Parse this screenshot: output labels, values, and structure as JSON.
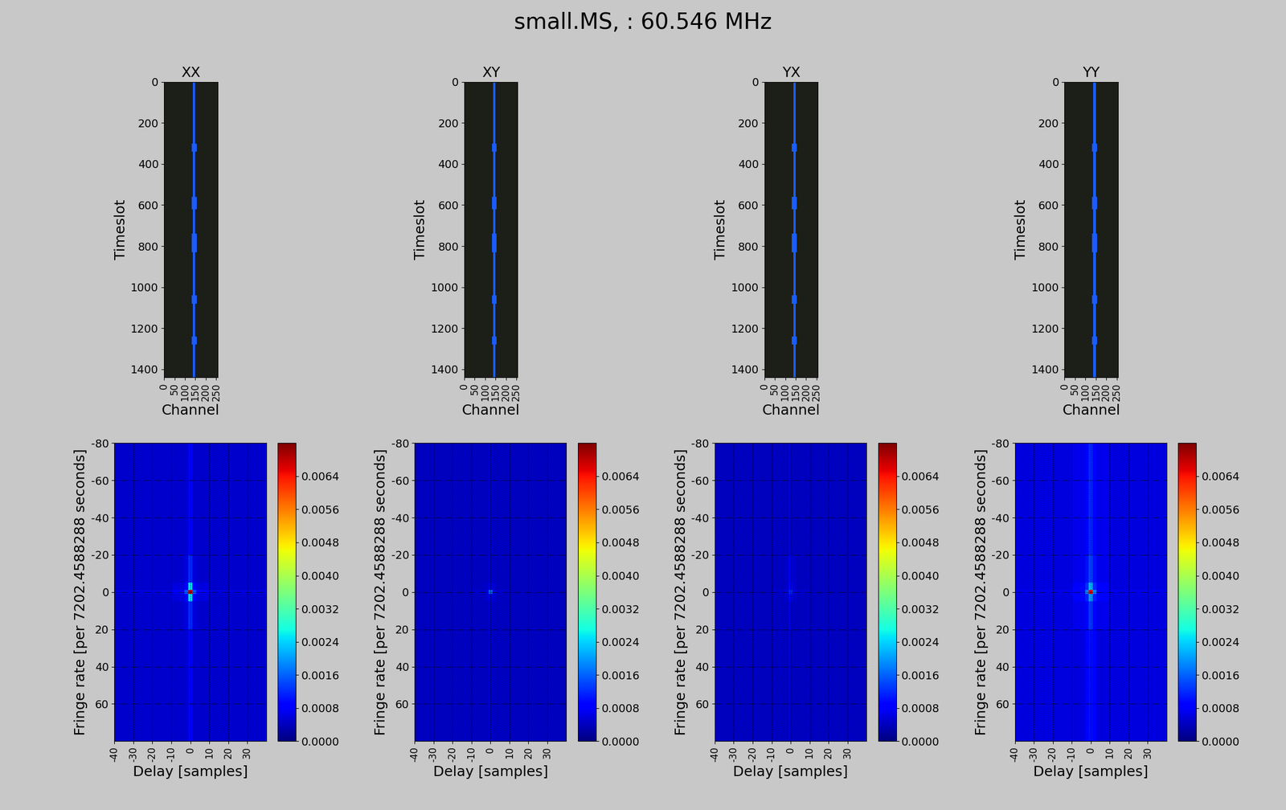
{
  "title": "small.MS, : 60.546 MHz",
  "chart_data": [
    {
      "type": "heatmap",
      "title": "XX",
      "x_label": "Channel",
      "y_label": "Timeslot",
      "x_edges": [
        0,
        132,
        138,
        150,
        156,
        256
      ],
      "y_edges": [
        0,
        300,
        340,
        560,
        620,
        740,
        830,
        1040,
        1080,
        1240,
        1280,
        1440
      ],
      "cells": [
        [
          0.15,
          0.15,
          1,
          0.15,
          0.15
        ],
        [
          0.15,
          1,
          1,
          1,
          0.15
        ],
        [
          0.15,
          0.15,
          1,
          0.15,
          0.15
        ],
        [
          0.15,
          1,
          1,
          1,
          0.15
        ],
        [
          0.15,
          0.15,
          1,
          0.15,
          0.15
        ],
        [
          0.15,
          1,
          1,
          1,
          0.15
        ],
        [
          0.15,
          0.15,
          1,
          0.15,
          0.15
        ],
        [
          0.15,
          1,
          1,
          1,
          0.15
        ],
        [
          0.15,
          0.15,
          1,
          0.15,
          0.15
        ],
        [
          0.15,
          1,
          1,
          1,
          0.15
        ],
        [
          0.15,
          0.15,
          1,
          0.15,
          0.15
        ]
      ],
      "xlim": [
        0,
        256
      ],
      "ylim": [
        1440,
        0
      ],
      "xticks": [
        0,
        50,
        100,
        150,
        200,
        250
      ],
      "yticks": [
        0,
        200,
        400,
        600,
        800,
        1000,
        1200,
        1400
      ]
    },
    {
      "type": "heatmap",
      "title": "XY",
      "x_label": "Channel",
      "y_label": "Timeslot",
      "x_edges": [
        0,
        132,
        138,
        150,
        156,
        256
      ],
      "y_edges": [
        0,
        300,
        340,
        560,
        620,
        740,
        830,
        1040,
        1080,
        1240,
        1280,
        1440
      ],
      "cells": [
        [
          0.15,
          0.15,
          1,
          0.15,
          0.15
        ],
        [
          0.15,
          1,
          1,
          1,
          0.15
        ],
        [
          0.15,
          0.15,
          1,
          0.15,
          0.15
        ],
        [
          0.15,
          1,
          1,
          1,
          0.15
        ],
        [
          0.15,
          0.15,
          1,
          0.15,
          0.15
        ],
        [
          0.15,
          1,
          1,
          1,
          0.15
        ],
        [
          0.15,
          0.15,
          1,
          0.15,
          0.15
        ],
        [
          0.15,
          1,
          1,
          1,
          0.15
        ],
        [
          0.15,
          0.15,
          1,
          0.15,
          0.15
        ],
        [
          0.15,
          1,
          1,
          1,
          0.15
        ],
        [
          0.15,
          0.15,
          1,
          0.15,
          0.15
        ]
      ],
      "xlim": [
        0,
        256
      ],
      "ylim": [
        1440,
        0
      ],
      "xticks": [
        0,
        50,
        100,
        150,
        200,
        250
      ],
      "yticks": [
        0,
        200,
        400,
        600,
        800,
        1000,
        1200,
        1400
      ]
    },
    {
      "type": "heatmap",
      "title": "YX",
      "x_label": "Channel",
      "y_label": "Timeslot",
      "x_edges": [
        0,
        132,
        138,
        150,
        156,
        256
      ],
      "y_edges": [
        0,
        300,
        340,
        560,
        620,
        740,
        830,
        1040,
        1080,
        1240,
        1280,
        1440
      ],
      "cells": [
        [
          0.15,
          0.15,
          1,
          0.15,
          0.15
        ],
        [
          0.15,
          1,
          1,
          1,
          0.15
        ],
        [
          0.15,
          0.15,
          1,
          0.15,
          0.15
        ],
        [
          0.15,
          1,
          1,
          1,
          0.15
        ],
        [
          0.15,
          0.15,
          1,
          0.15,
          0.15
        ],
        [
          0.15,
          1,
          1,
          1,
          0.15
        ],
        [
          0.15,
          0.15,
          1,
          0.15,
          0.15
        ],
        [
          0.15,
          1,
          1,
          1,
          0.15
        ],
        [
          0.15,
          0.15,
          1,
          0.15,
          0.15
        ],
        [
          0.15,
          1,
          1,
          1,
          0.15
        ],
        [
          0.15,
          0.15,
          1,
          0.15,
          0.15
        ]
      ],
      "xlim": [
        0,
        256
      ],
      "ylim": [
        1440,
        0
      ],
      "xticks": [
        0,
        50,
        100,
        150,
        200,
        250
      ],
      "yticks": [
        0,
        200,
        400,
        600,
        800,
        1000,
        1200,
        1400
      ]
    },
    {
      "type": "heatmap",
      "title": "YY",
      "x_label": "Channel",
      "y_label": "Timeslot",
      "x_edges": [
        0,
        132,
        138,
        150,
        156,
        256
      ],
      "y_edges": [
        0,
        300,
        340,
        560,
        620,
        740,
        830,
        1040,
        1080,
        1240,
        1280,
        1440
      ],
      "cells": [
        [
          0.15,
          0.15,
          1,
          0.15,
          0.15
        ],
        [
          0.15,
          1,
          1,
          1,
          0.15
        ],
        [
          0.15,
          0.15,
          1,
          0.15,
          0.15
        ],
        [
          0.15,
          1,
          1,
          1,
          0.15
        ],
        [
          0.15,
          0.15,
          1,
          0.15,
          0.15
        ],
        [
          0.15,
          1,
          1,
          1,
          0.15
        ],
        [
          0.15,
          0.15,
          1,
          0.15,
          0.15
        ],
        [
          0.15,
          1,
          1,
          1,
          0.15
        ],
        [
          0.15,
          0.15,
          1,
          0.15,
          0.15
        ],
        [
          0.15,
          1,
          1,
          1,
          0.15
        ],
        [
          0.15,
          0.15,
          1,
          0.15,
          0.15
        ]
      ],
      "xlim": [
        0,
        256
      ],
      "ylim": [
        1440,
        0
      ],
      "xticks": [
        0,
        50,
        100,
        150,
        200,
        250
      ],
      "yticks": [
        0,
        200,
        400,
        600,
        800,
        1000,
        1200,
        1400
      ]
    },
    {
      "type": "heatmap",
      "x_label": "Delay [samples]",
      "y_label": "Fringe rate [per 7202.4588288 seconds]",
      "x_edges": [
        -40,
        -10,
        -3,
        -1,
        1,
        3,
        10,
        40
      ],
      "y_edges": [
        -80,
        -20,
        -5,
        -1,
        1,
        5,
        20,
        80
      ],
      "cells": [
        [
          0.0005,
          0.0005,
          0.0005,
          0.0008,
          0.0005,
          0.0005,
          0.0005
        ],
        [
          0.0005,
          0.0005,
          0.0006,
          0.0012,
          0.0006,
          0.0005,
          0.0005
        ],
        [
          0.0005,
          0.0006,
          0.0008,
          0.0025,
          0.0008,
          0.0006,
          0.0005
        ],
        [
          0.0006,
          0.0008,
          0.0015,
          0.0068,
          0.0015,
          0.0008,
          0.0006
        ],
        [
          0.0005,
          0.0006,
          0.0008,
          0.0025,
          0.0008,
          0.0006,
          0.0005
        ],
        [
          0.0005,
          0.0005,
          0.0006,
          0.0012,
          0.0006,
          0.0005,
          0.0005
        ],
        [
          0.0005,
          0.0005,
          0.0005,
          0.0008,
          0.0005,
          0.0005,
          0.0005
        ]
      ],
      "xlim": [
        -40,
        40
      ],
      "ylim": [
        80,
        -80
      ],
      "xticks": [
        -40,
        -30,
        -20,
        -10,
        0,
        10,
        20,
        30
      ],
      "yticks": [
        -80,
        -60,
        -40,
        -20,
        0,
        20,
        40,
        60
      ],
      "grid": true,
      "colorbar_range": [
        0,
        0.0072
      ],
      "colorbar_ticks": [
        {
          "value": 0,
          "label": "0.0000"
        },
        0.0008,
        0.0016,
        0.0024,
        0.0032,
        {
          "value": 0.004,
          "label": "0.0040"
        },
        0.0048,
        0.0056,
        0.0064
      ]
    },
    {
      "type": "heatmap",
      "x_label": "Delay [samples]",
      "y_label": "Fringe rate [per 7202.4588288 seconds]",
      "x_edges": [
        -40,
        -10,
        -3,
        -1,
        1,
        3,
        10,
        40
      ],
      "y_edges": [
        -80,
        -20,
        -5,
        -1,
        1,
        5,
        20,
        80
      ],
      "cells": [
        [
          0.0004,
          0.0004,
          0.0004,
          0.0005,
          0.0004,
          0.0004,
          0.0004
        ],
        [
          0.0004,
          0.0004,
          0.0004,
          0.0005,
          0.0004,
          0.0004,
          0.0004
        ],
        [
          0.0004,
          0.0004,
          0.0005,
          0.0006,
          0.0005,
          0.0004,
          0.0004
        ],
        [
          0.0004,
          0.0005,
          0.0006,
          0.0016,
          0.0006,
          0.0005,
          0.0004
        ],
        [
          0.0004,
          0.0004,
          0.0005,
          0.0006,
          0.0005,
          0.0004,
          0.0004
        ],
        [
          0.0004,
          0.0004,
          0.0004,
          0.0005,
          0.0004,
          0.0004,
          0.0004
        ],
        [
          0.0004,
          0.0004,
          0.0004,
          0.0005,
          0.0004,
          0.0004,
          0.0004
        ]
      ],
      "xlim": [
        -40,
        40
      ],
      "ylim": [
        80,
        -80
      ],
      "xticks": [
        -40,
        -30,
        -20,
        -10,
        0,
        10,
        20,
        30
      ],
      "yticks": [
        -80,
        -60,
        -40,
        -20,
        0,
        20,
        40,
        60
      ],
      "grid": true,
      "colorbar_range": [
        0,
        0.0072
      ],
      "colorbar_ticks": [
        {
          "value": 0,
          "label": "0.0000"
        },
        0.0008,
        0.0016,
        0.0024,
        0.0032,
        {
          "value": 0.004,
          "label": "0.0040"
        },
        0.0048,
        0.0056,
        0.0064
      ]
    },
    {
      "type": "heatmap",
      "x_label": "Delay [samples]",
      "y_label": "Fringe rate [per 7202.4588288 seconds]",
      "x_edges": [
        -40,
        -10,
        -3,
        -1,
        1,
        3,
        10,
        40
      ],
      "y_edges": [
        -80,
        -20,
        -5,
        -1,
        1,
        5,
        20,
        80
      ],
      "cells": [
        [
          0.0004,
          0.0004,
          0.0004,
          0.0005,
          0.0004,
          0.0004,
          0.0004
        ],
        [
          0.0004,
          0.0004,
          0.0005,
          0.0007,
          0.0005,
          0.0004,
          0.0004
        ],
        [
          0.0004,
          0.0004,
          0.0005,
          0.0009,
          0.0005,
          0.0004,
          0.0004
        ],
        [
          0.0004,
          0.0005,
          0.0006,
          0.0012,
          0.0006,
          0.0005,
          0.0004
        ],
        [
          0.0004,
          0.0004,
          0.0005,
          0.0008,
          0.0005,
          0.0004,
          0.0004
        ],
        [
          0.0004,
          0.0004,
          0.0004,
          0.0006,
          0.0004,
          0.0004,
          0.0004
        ],
        [
          0.0004,
          0.0004,
          0.0004,
          0.0005,
          0.0004,
          0.0004,
          0.0004
        ]
      ],
      "xlim": [
        -40,
        40
      ],
      "ylim": [
        80,
        -80
      ],
      "xticks": [
        -40,
        -30,
        -20,
        -10,
        0,
        10,
        20,
        30
      ],
      "yticks": [
        -80,
        -60,
        -40,
        -20,
        0,
        20,
        40,
        60
      ],
      "grid": true,
      "colorbar_range": [
        0,
        0.0072
      ],
      "colorbar_ticks": [
        {
          "value": 0,
          "label": "0.0000"
        },
        0.0008,
        0.0016,
        0.0024,
        0.0032,
        {
          "value": 0.004,
          "label": "0.0040"
        },
        0.0048,
        0.0056,
        0.0064
      ]
    },
    {
      "type": "heatmap",
      "x_label": "Delay [samples]",
      "y_label": "Fringe rate [per 7202.4588288 seconds]",
      "x_edges": [
        -40,
        -10,
        -3,
        -1,
        1,
        3,
        10,
        40
      ],
      "y_edges": [
        -80,
        -20,
        -5,
        -1,
        1,
        5,
        20,
        80
      ],
      "cells": [
        [
          0.0006,
          0.0007,
          0.0009,
          0.0012,
          0.0009,
          0.0007,
          0.0006
        ],
        [
          0.0006,
          0.0007,
          0.001,
          0.0014,
          0.001,
          0.0007,
          0.0006
        ],
        [
          0.0006,
          0.0008,
          0.0012,
          0.0022,
          0.0012,
          0.0008,
          0.0006
        ],
        [
          0.0007,
          0.0009,
          0.0018,
          0.0066,
          0.0018,
          0.0009,
          0.0007
        ],
        [
          0.0006,
          0.0008,
          0.0011,
          0.002,
          0.0011,
          0.0008,
          0.0006
        ],
        [
          0.0006,
          0.0007,
          0.0009,
          0.0013,
          0.0009,
          0.0007,
          0.0006
        ],
        [
          0.0006,
          0.0006,
          0.0008,
          0.001,
          0.0008,
          0.0006,
          0.0006
        ]
      ],
      "xlim": [
        -40,
        40
      ],
      "ylim": [
        80,
        -80
      ],
      "xticks": [
        -40,
        -30,
        -20,
        -10,
        0,
        10,
        20,
        30
      ],
      "yticks": [
        -80,
        -60,
        -40,
        -20,
        0,
        20,
        40,
        60
      ],
      "grid": true,
      "colorbar_range": [
        0,
        0.0072
      ],
      "colorbar_ticks": [
        {
          "value": 0,
          "label": "0.0000"
        },
        0.0008,
        0.0016,
        0.0024,
        0.0032,
        {
          "value": 0.004,
          "label": "0.0040"
        },
        0.0048,
        0.0056,
        0.0064
      ]
    }
  ]
}
